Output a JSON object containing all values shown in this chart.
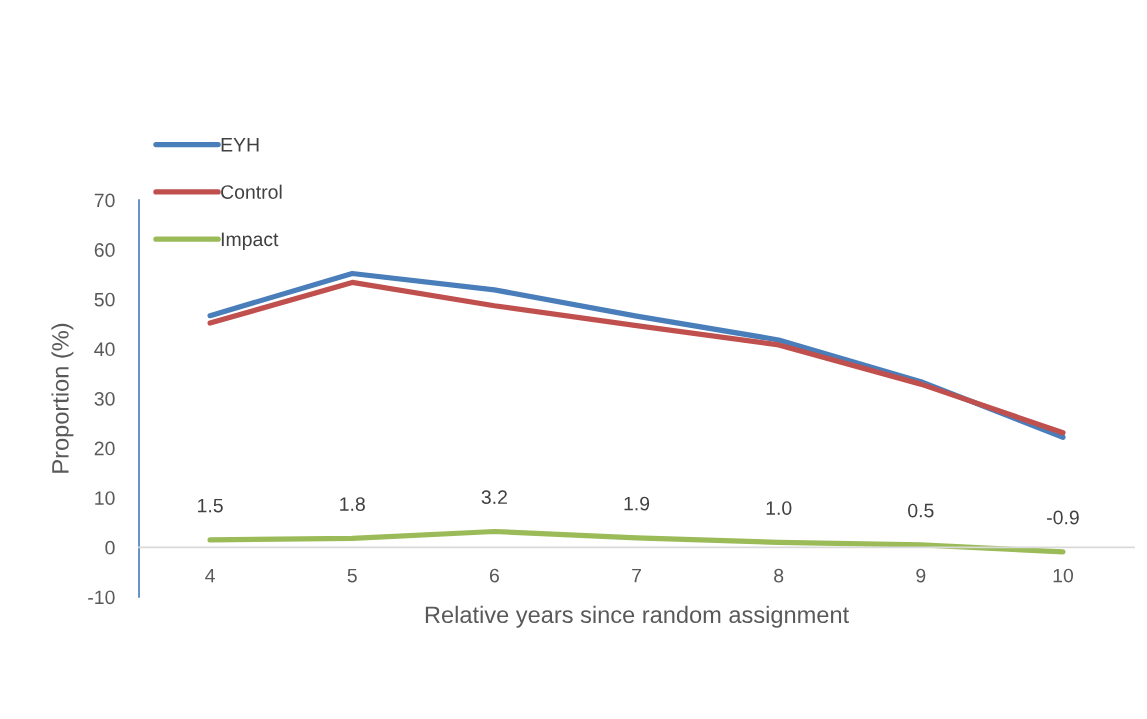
{
  "chart_data": {
    "type": "line",
    "xlabel": "Relative years since random assignment",
    "ylabel": "Proportion (%)",
    "categories": [
      "4",
      "5",
      "6",
      "7",
      "8",
      "9",
      "10"
    ],
    "series": [
      {
        "name": "EYH",
        "color": "#4a7ebb",
        "values": [
          46.7,
          55.2,
          51.9,
          46.6,
          41.8,
          33.4,
          22.2
        ]
      },
      {
        "name": "Control",
        "color": "#c0504d",
        "values": [
          45.2,
          53.4,
          48.7,
          44.7,
          40.8,
          32.9,
          23.1
        ]
      },
      {
        "name": "Impact",
        "color": "#9bbb59",
        "values": [
          1.5,
          1.8,
          3.2,
          1.9,
          1.0,
          0.5,
          -0.9
        ],
        "value_labels": [
          "1.5",
          "1.8",
          "3.2",
          "1.9",
          "1.0",
          "0.5",
          "-0.9"
        ]
      }
    ],
    "ylim": [
      -10,
      70
    ],
    "yticks": [
      -10,
      0,
      10,
      20,
      30,
      40,
      50,
      60,
      70
    ],
    "legend": "top left",
    "line_style": "solid"
  }
}
